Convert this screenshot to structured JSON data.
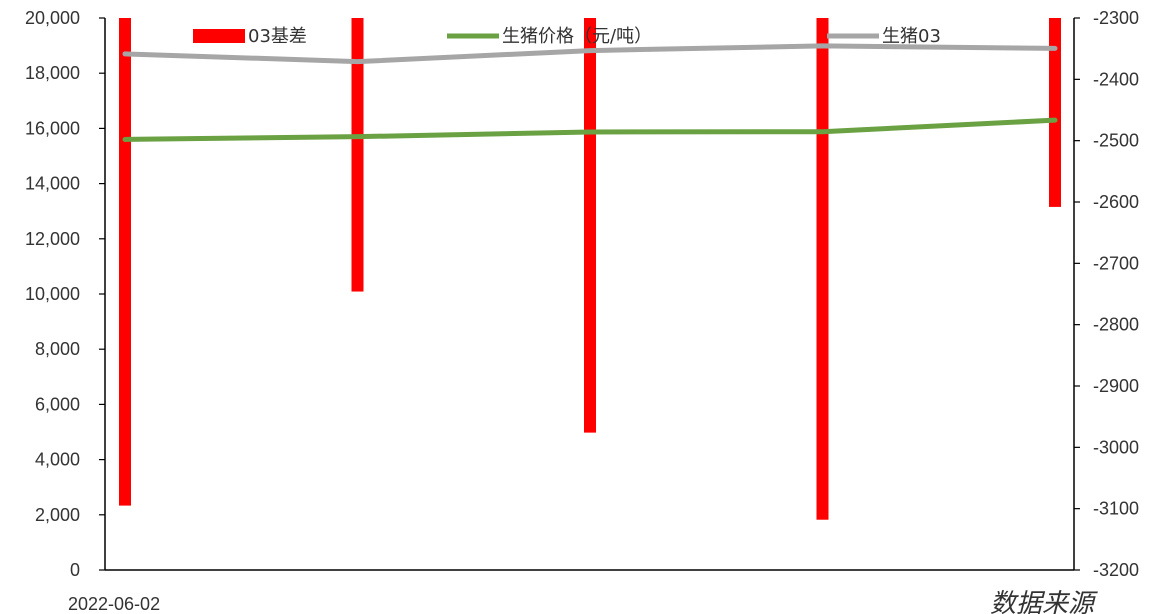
{
  "chart_data": {
    "type": "bar+line",
    "x": [
      "2022-06-02",
      "",
      "",
      "",
      ""
    ],
    "series": [
      {
        "name": "03基差",
        "kind": "bar",
        "axis": "right",
        "color": "#ff0000",
        "values": [
          -3095,
          -2746,
          -2976,
          -3118,
          -2608
        ]
      },
      {
        "name": "生猪价格（元/吨）",
        "kind": "line",
        "axis": "left",
        "color": "#6aa142",
        "values": [
          15600,
          15700,
          15870,
          15880,
          16300
        ]
      },
      {
        "name": "生猪03",
        "kind": "line",
        "axis": "left",
        "color": "#a6a6a6",
        "values": [
          18700,
          18420,
          18820,
          18990,
          18900
        ]
      }
    ],
    "left_axis": {
      "ylim": [
        0,
        20000
      ],
      "ticks": [
        "0",
        "2,000",
        "4,000",
        "6,000",
        "8,000",
        "10,000",
        "12,000",
        "14,000",
        "16,000",
        "18,000",
        "20,000"
      ]
    },
    "right_axis": {
      "ylim": [
        -3200,
        -2300
      ],
      "ticks": [
        "-3200",
        "-3100",
        "-3000",
        "-2900",
        "-2800",
        "-2700",
        "-2600",
        "-2500",
        "-2400",
        "-2300"
      ]
    },
    "x_tick_labels": [
      "2022-06-02"
    ],
    "legend_position": "top",
    "grid": false
  },
  "source_note": "数据来源"
}
